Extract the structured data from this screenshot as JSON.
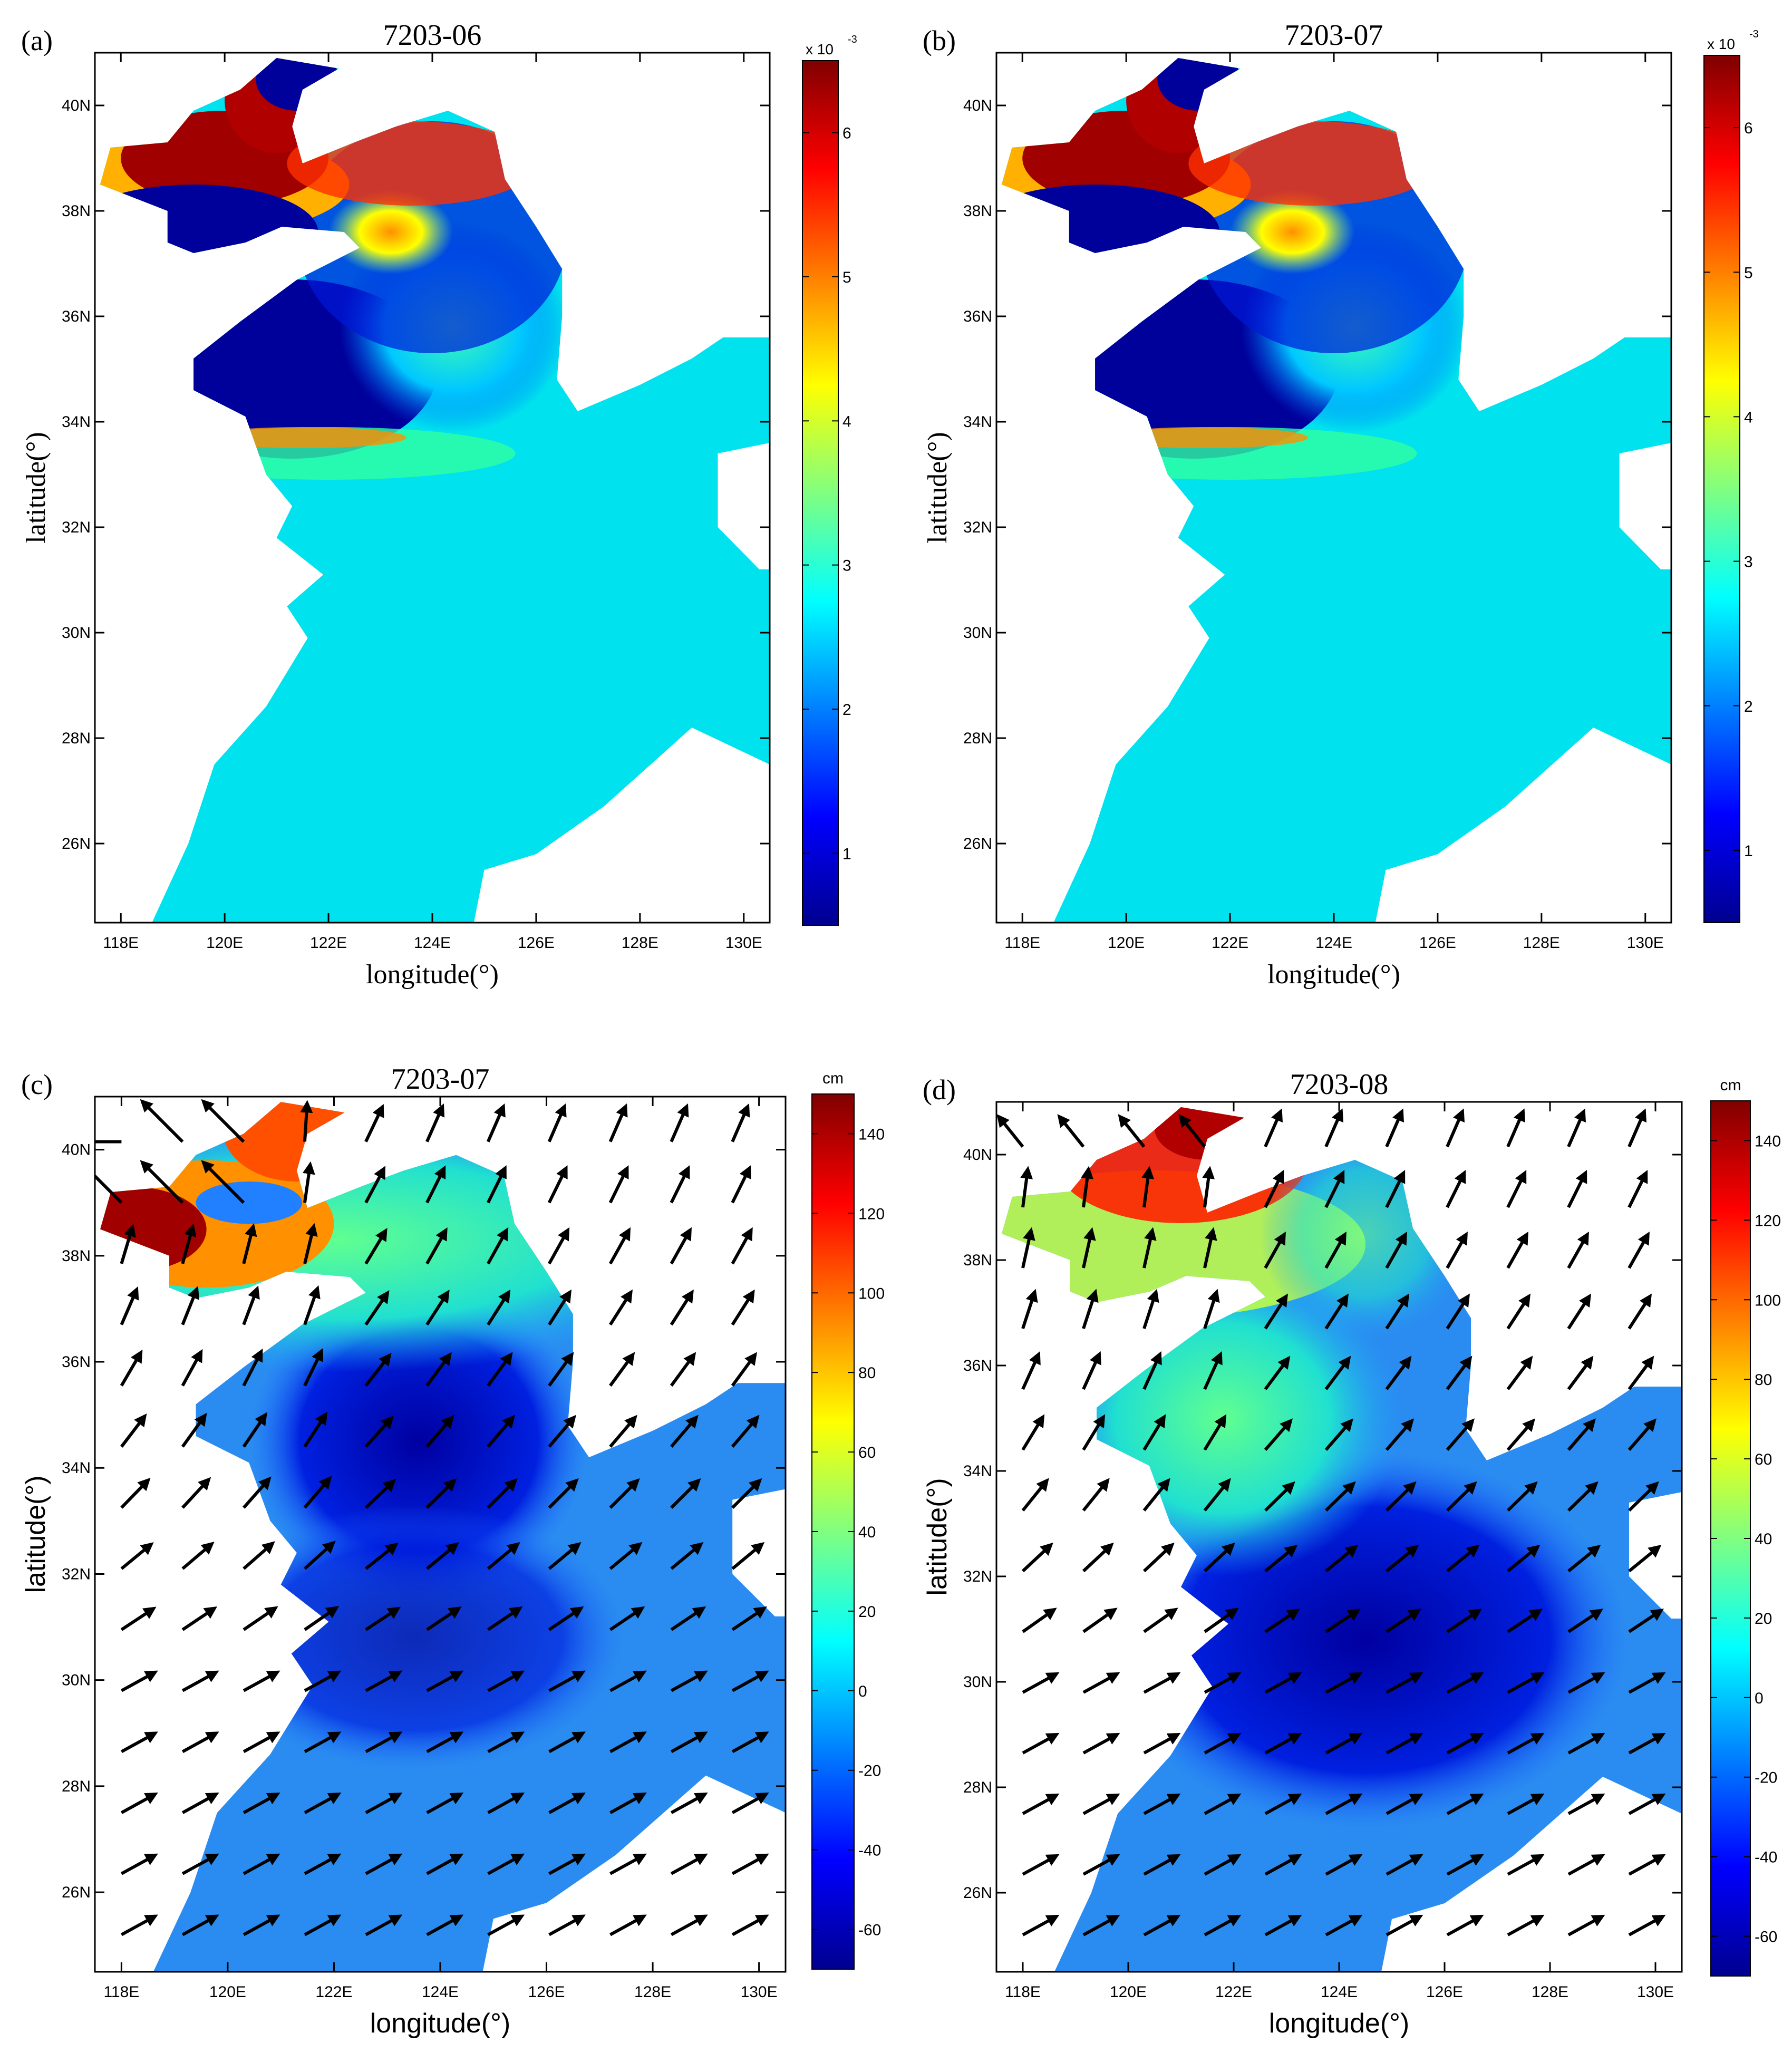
{
  "colors": {
    "jet": [
      "#00008f",
      "#0000ff",
      "#0080ff",
      "#00ffff",
      "#80ff80",
      "#ffff00",
      "#ff8000",
      "#ff0000",
      "#800000"
    ],
    "ocean_base_a": "#00e2ee",
    "ocean_base_c": "#2a8cf0",
    "arrow": "#000000"
  },
  "panels": [
    {
      "id": "a",
      "label": "(a)",
      "title": "7203-06",
      "xlabel": "longitude(°)",
      "ylabel": "latitude(°)",
      "xticks": [
        "118E",
        "120E",
        "122E",
        "124E",
        "126E",
        "128E",
        "130E"
      ],
      "yticks": [
        "40N",
        "38N",
        "36N",
        "34N",
        "32N",
        "30N",
        "28N",
        "26N"
      ],
      "colorbar": {
        "exponent": "x 10",
        "exponent_power": "-3",
        "unit": "",
        "ticks": [
          "1",
          "2",
          "3",
          "4",
          "5",
          "6"
        ]
      },
      "map_data": {
        "lon_range": [
          117.5,
          130.5
        ],
        "lat_range": [
          24.5,
          41
        ],
        "clim": [
          0.5,
          6.5
        ],
        "arrows": false
      }
    },
    {
      "id": "b",
      "label": "(b)",
      "title": "7203-07",
      "xlabel": "longitude(°)",
      "ylabel": "latitude(°)",
      "xticks": [
        "118E",
        "120E",
        "122E",
        "124E",
        "126E",
        "128E",
        "130E"
      ],
      "yticks": [
        "40N",
        "38N",
        "36N",
        "34N",
        "32N",
        "30N",
        "28N",
        "26N"
      ],
      "colorbar": {
        "exponent": "x 10",
        "exponent_power": "-3",
        "unit": "",
        "ticks": [
          "1",
          "2",
          "3",
          "4",
          "5",
          "6"
        ]
      },
      "map_data": {
        "lon_range": [
          117.5,
          130.5
        ],
        "lat_range": [
          24.5,
          41
        ],
        "clim": [
          0.5,
          6.5
        ],
        "arrows": false
      }
    },
    {
      "id": "c",
      "label": "(c)",
      "title": "7203-07",
      "xlabel": "longitude(°)",
      "ylabel": "latitude(°)",
      "xticks": [
        "118E",
        "120E",
        "122E",
        "124E",
        "126E",
        "128E",
        "130E"
      ],
      "yticks": [
        "40N",
        "38N",
        "36N",
        "34N",
        "32N",
        "30N",
        "28N",
        "26N"
      ],
      "colorbar": {
        "exponent": "",
        "exponent_power": "",
        "unit": "cm",
        "ticks": [
          "140",
          "120",
          "100",
          "80",
          "60",
          "40",
          "20",
          "0",
          "-20",
          "-40",
          "-60"
        ]
      },
      "map_data": {
        "lon_range": [
          117.5,
          130.5
        ],
        "lat_range": [
          24.5,
          41
        ],
        "clim": [
          -70,
          150
        ],
        "arrows": true
      }
    },
    {
      "id": "d",
      "label": "(d)",
      "title": "7203-08",
      "xlabel": "longitude(°)",
      "ylabel": "latitude(°)",
      "xticks": [
        "118E",
        "120E",
        "122E",
        "124E",
        "126E",
        "128E",
        "130E"
      ],
      "yticks": [
        "40N",
        "38N",
        "36N",
        "34N",
        "32N",
        "30N",
        "28N",
        "26N"
      ],
      "colorbar": {
        "exponent": "",
        "exponent_power": "",
        "unit": "cm",
        "ticks": [
          "140",
          "120",
          "100",
          "80",
          "60",
          "40",
          "20",
          "0",
          "-20",
          "-40",
          "-60"
        ]
      },
      "map_data": {
        "lon_range": [
          117.5,
          130.5
        ],
        "lat_range": [
          24.5,
          41
        ],
        "clim": [
          -70,
          150
        ],
        "arrows": true
      }
    }
  ]
}
